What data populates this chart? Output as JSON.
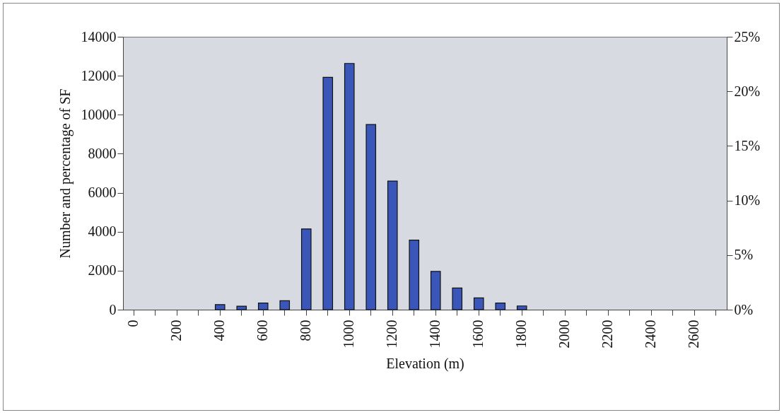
{
  "chart_data": {
    "type": "bar",
    "xlabel": "Elevation (m)",
    "ylabel": "Number and percentage of SF",
    "categories": [
      "0",
      null,
      "200",
      null,
      "400",
      null,
      "600",
      null,
      "800",
      null,
      "1000",
      null,
      "1200",
      null,
      "1400",
      null,
      "1600",
      null,
      "1800",
      null,
      "2000",
      null,
      "2200",
      null,
      "2400",
      null,
      "2600",
      null
    ],
    "values": [
      null,
      null,
      null,
      null,
      260,
      180,
      340,
      460,
      4140,
      11920,
      12630,
      9500,
      6600,
      3570,
      1960,
      1110,
      600,
      340,
      190,
      null,
      null,
      null,
      null,
      null,
      null,
      null,
      null,
      null
    ],
    "color": "#3a56b8",
    "ylim": [
      0,
      14000
    ],
    "yticks": [
      0,
      2000,
      4000,
      6000,
      8000,
      10000,
      12000,
      14000
    ],
    "y2lim": [
      0,
      25
    ],
    "y2ticks": [
      {
        "value": 0,
        "label": "0%"
      },
      {
        "value": 5,
        "label": "5%"
      },
      {
        "value": 10,
        "label": "10%"
      },
      {
        "value": 15,
        "label": "15%"
      },
      {
        "value": 20,
        "label": "20%"
      },
      {
        "value": 25,
        "label": "25%"
      }
    ]
  }
}
